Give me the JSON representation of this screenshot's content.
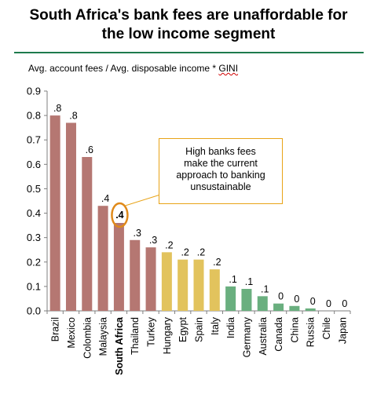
{
  "title_line1": "South Africa's bank fees are unaffordable for",
  "title_line2": "the low income segment",
  "subtitle_prefix": "Avg. account fees / Avg. disposable income * ",
  "subtitle_gini": "GINI",
  "callout_lines": [
    "High banks fees",
    "make the current",
    "approach to banking",
    "unsustainable"
  ],
  "colors": {
    "rule": "#1e7b4d",
    "high": "#b57772",
    "mid": "#e2c35d",
    "low": "#6aaf7f",
    "callout_border": "#e8a317",
    "highlight_ring": "#e08a1a"
  },
  "chart_data": {
    "type": "bar",
    "title": "South Africa's bank fees are unaffordable for the low income segment",
    "ylabel": "",
    "xlabel": "",
    "ylim": [
      0,
      0.9
    ],
    "yticks": [
      "0.0",
      "0.1",
      "0.2",
      "0.3",
      "0.4",
      "0.5",
      "0.6",
      "0.7",
      "0.8",
      "0.9"
    ],
    "categories": [
      "Brazil",
      "Mexico",
      "Colombia",
      "Malaysia",
      "South Africa",
      "Thailand",
      "Turkey",
      "Hungary",
      "Egypt",
      "Spain",
      "Italy",
      "India",
      "Germany",
      "Australia",
      "Canada",
      "China",
      "Russia",
      "Chile",
      "Japan"
    ],
    "values": [
      0.8,
      0.77,
      0.63,
      0.43,
      0.36,
      0.29,
      0.26,
      0.24,
      0.21,
      0.21,
      0.17,
      0.1,
      0.09,
      0.06,
      0.03,
      0.02,
      0.01,
      0.0,
      0.0
    ],
    "data_labels": [
      ".8",
      ".8",
      ".6",
      ".4",
      ".4",
      ".3",
      ".3",
      ".2",
      ".2",
      ".2",
      ".2",
      ".1",
      ".1",
      ".1",
      "0",
      "0",
      "0",
      "0",
      "0"
    ],
    "color_groups": [
      "high",
      "high",
      "high",
      "high",
      "high",
      "high",
      "high",
      "mid",
      "mid",
      "mid",
      "mid",
      "low",
      "low",
      "low",
      "low",
      "low",
      "low",
      "low",
      "low"
    ],
    "highlight": "South Africa",
    "grid": false,
    "legend": "none"
  }
}
